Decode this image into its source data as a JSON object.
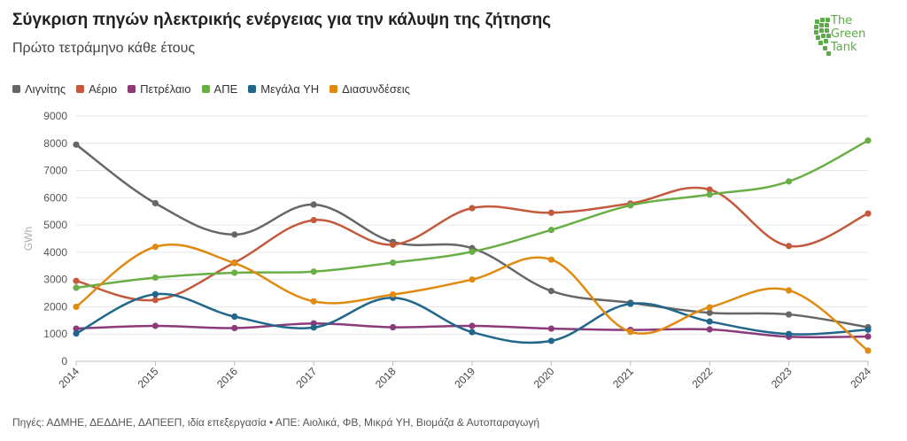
{
  "header": {
    "title": "Σύγκριση πηγών ηλεκτρικής ενέργειας για την κάλυψη της ζήτησης",
    "subtitle": "Πρώτο τετράμηνο κάθε έτους",
    "logo_text": [
      "The",
      "Green",
      "Tank"
    ]
  },
  "footer": {
    "source": "Πηγές: ΑΔΜΗΕ, ΔΕΔΔΗΕ, ΔΑΠΕΕΠ, ιδία επεξεργασία • ΑΠΕ: Αιολικά, ΦΒ, Μικρά ΥΗ, Βιομάζα & Αυτοπαραγωγή"
  },
  "chart_data": {
    "type": "line",
    "ylabel": "GWh",
    "ylim": [
      0,
      9000
    ],
    "yticks": [
      0,
      1000,
      2000,
      3000,
      4000,
      5000,
      6000,
      7000,
      8000,
      9000
    ],
    "categories": [
      "2014",
      "2015",
      "2016",
      "2017",
      "2018",
      "2019",
      "2020",
      "2021",
      "2022",
      "2023",
      "2024"
    ],
    "grid": true,
    "legend_position": "top-left",
    "series": [
      {
        "name": "Λιγνίτης",
        "color": "#666666",
        "values": [
          7950,
          5800,
          4650,
          5750,
          4380,
          4150,
          2580,
          2150,
          1780,
          1720,
          1250
        ]
      },
      {
        "name": "Αέριο",
        "color": "#c45a3c",
        "values": [
          2950,
          2250,
          3620,
          5180,
          4280,
          5620,
          5450,
          5790,
          6300,
          4230,
          5420
        ]
      },
      {
        "name": "Πετρέλαιο",
        "color": "#8b3a7a",
        "values": [
          1200,
          1300,
          1220,
          1390,
          1250,
          1300,
          1200,
          1150,
          1170,
          900,
          910
        ]
      },
      {
        "name": "ΑΠΕ",
        "color": "#6aaf46",
        "values": [
          2700,
          3070,
          3250,
          3290,
          3620,
          4020,
          4820,
          5720,
          6120,
          6600,
          8100
        ]
      },
      {
        "name": "Μεγάλα ΥΗ",
        "color": "#21678c",
        "values": [
          1020,
          2460,
          1640,
          1240,
          2330,
          1070,
          750,
          2110,
          1460,
          1000,
          1160
        ]
      },
      {
        "name": "Διασυνδέσεις",
        "color": "#e08a10",
        "values": [
          2000,
          4200,
          3600,
          2200,
          2450,
          3000,
          3730,
          1080,
          1980,
          2600,
          390
        ]
      }
    ]
  }
}
